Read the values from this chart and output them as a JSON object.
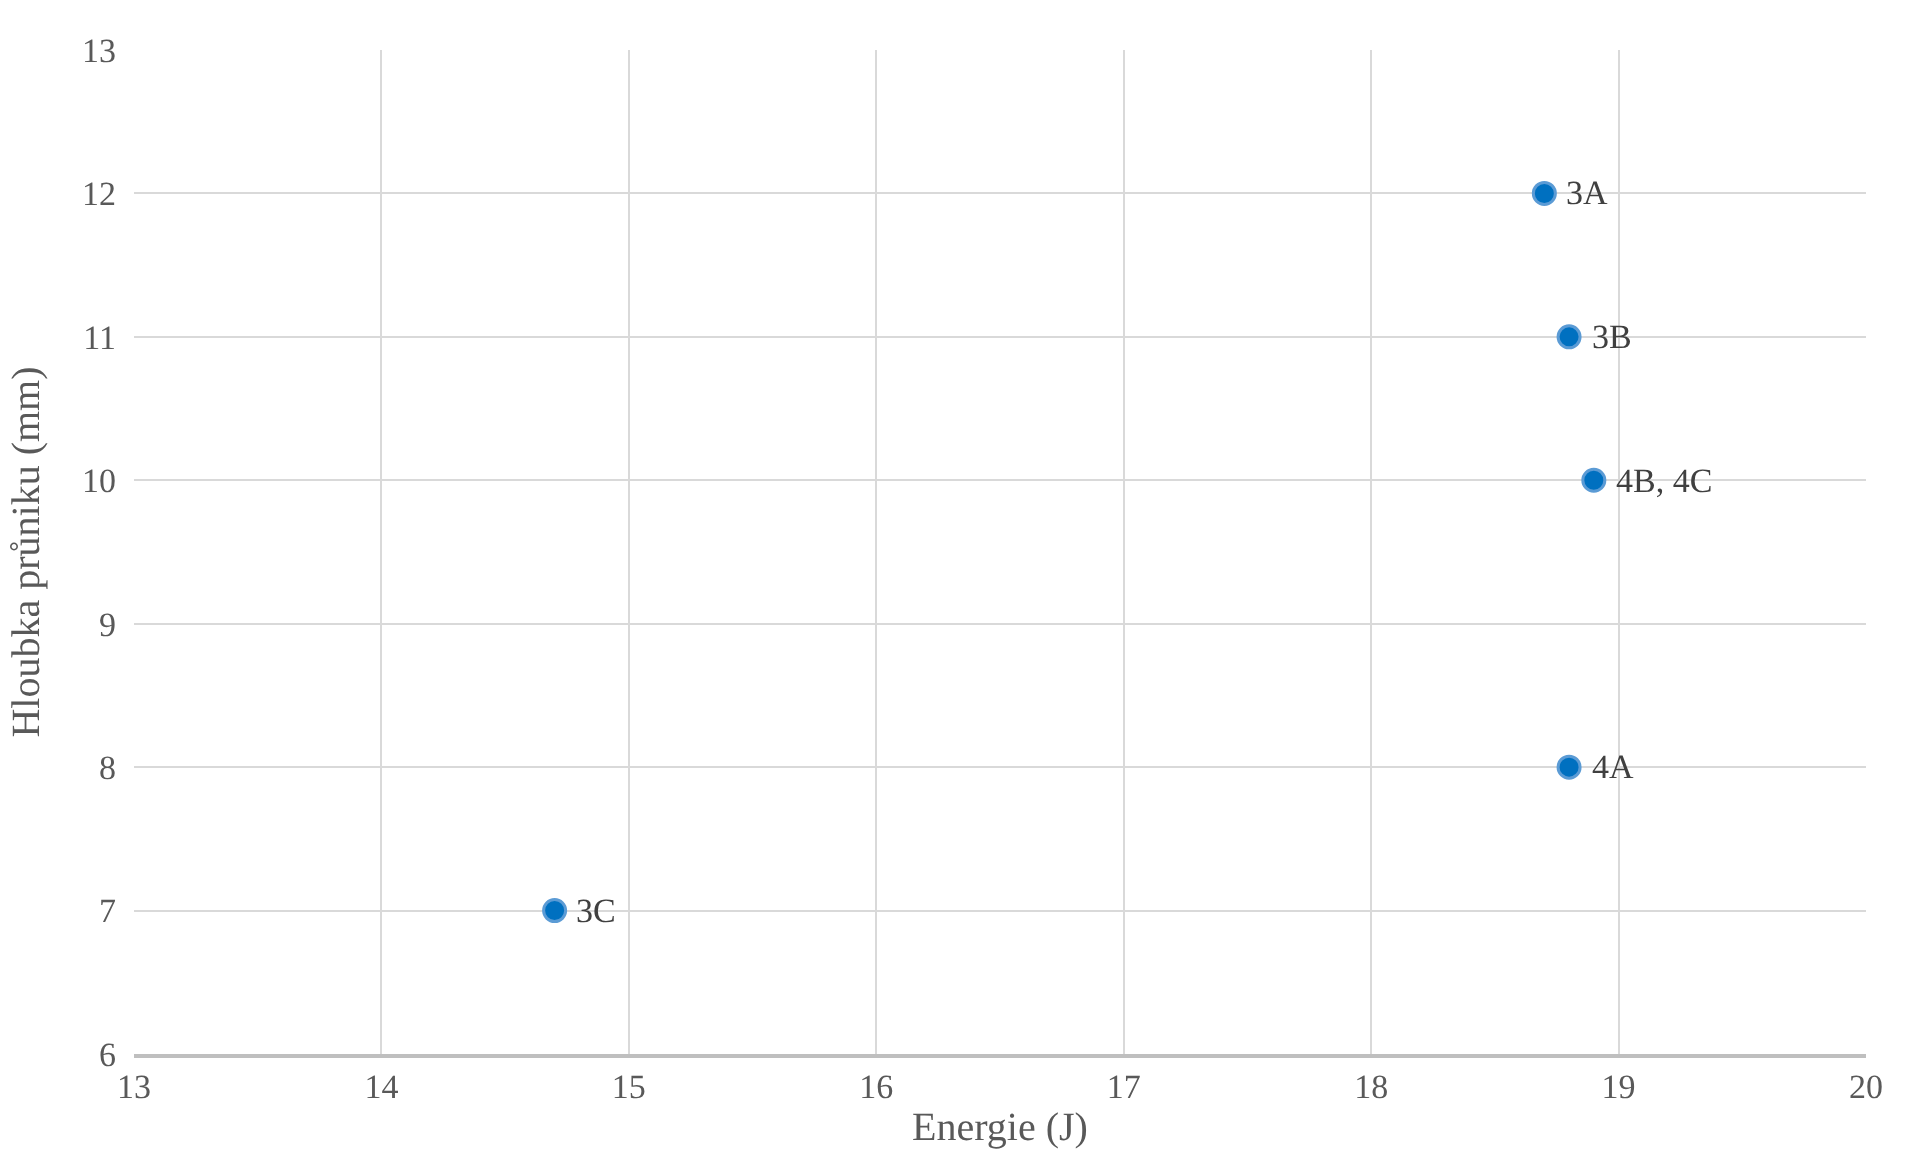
{
  "chart_data": {
    "type": "scatter",
    "xlabel": "Energie (J)",
    "ylabel": "Hloubka průniku (mm)",
    "x": [
      18.7,
      18.8,
      18.9,
      18.8,
      14.7
    ],
    "series": [
      {
        "color": "#0070c0",
        "values": [
          12,
          11,
          10,
          8,
          7
        ]
      }
    ],
    "annotations": [
      {
        "text": "3A",
        "x": 18.7,
        "y": 12
      },
      {
        "text": "3B",
        "x": 18.8,
        "y": 11
      },
      {
        "text": "4B, 4C",
        "x": 18.9,
        "y": 10
      },
      {
        "text": "4A",
        "x": 18.8,
        "y": 8
      },
      {
        "text": "3C",
        "x": 14.7,
        "y": 7
      }
    ],
    "xlim": [
      13,
      20
    ],
    "xticks": [
      13,
      14,
      15,
      16,
      17,
      18,
      19,
      20
    ],
    "ylim": [
      6,
      13
    ],
    "yticks": [
      6,
      7,
      8,
      9,
      10,
      11,
      12,
      13
    ],
    "grid": true,
    "marker": "circle"
  }
}
